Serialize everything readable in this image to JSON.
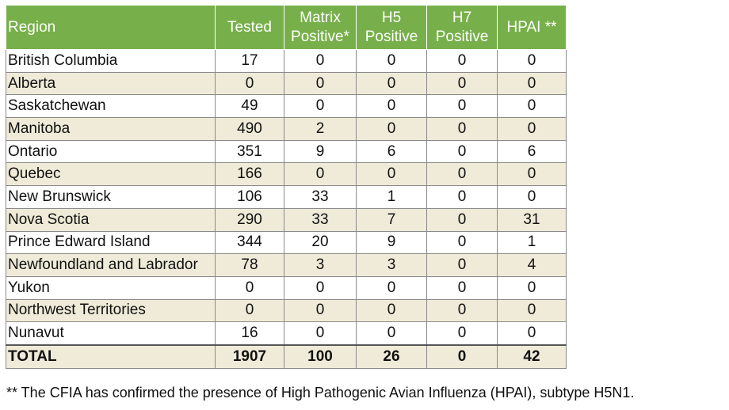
{
  "table": {
    "header": [
      "Region",
      "Tested",
      "Matrix Positive*",
      "H5 Positive",
      "H7 Positive",
      "HPAI **"
    ],
    "rows": [
      [
        "British Columbia",
        17,
        0,
        0,
        0,
        0
      ],
      [
        "Alberta",
        0,
        0,
        0,
        0,
        0
      ],
      [
        "Saskatchewan",
        49,
        0,
        0,
        0,
        0
      ],
      [
        "Manitoba",
        490,
        2,
        0,
        0,
        0
      ],
      [
        "Ontario",
        351,
        9,
        6,
        0,
        6
      ],
      [
        "Quebec",
        166,
        0,
        0,
        0,
        0
      ],
      [
        "New Brunswick",
        106,
        33,
        1,
        0,
        0
      ],
      [
        "Nova Scotia",
        290,
        33,
        7,
        0,
        31
      ],
      [
        "Prince Edward Island",
        344,
        20,
        9,
        0,
        1
      ],
      [
        "Newfoundland and Labrador",
        78,
        3,
        3,
        0,
        4
      ],
      [
        "Yukon",
        0,
        0,
        0,
        0,
        0
      ],
      [
        "Northwest Territories",
        0,
        0,
        0,
        0,
        0
      ],
      [
        "Nunavut",
        16,
        0,
        0,
        0,
        0
      ]
    ],
    "total": [
      "TOTAL",
      1907,
      100,
      26,
      0,
      42
    ]
  },
  "footnote": "** The CFIA has confirmed the presence of High Pathogenic Avian Influenza (HPAI), subtype H5N1."
}
